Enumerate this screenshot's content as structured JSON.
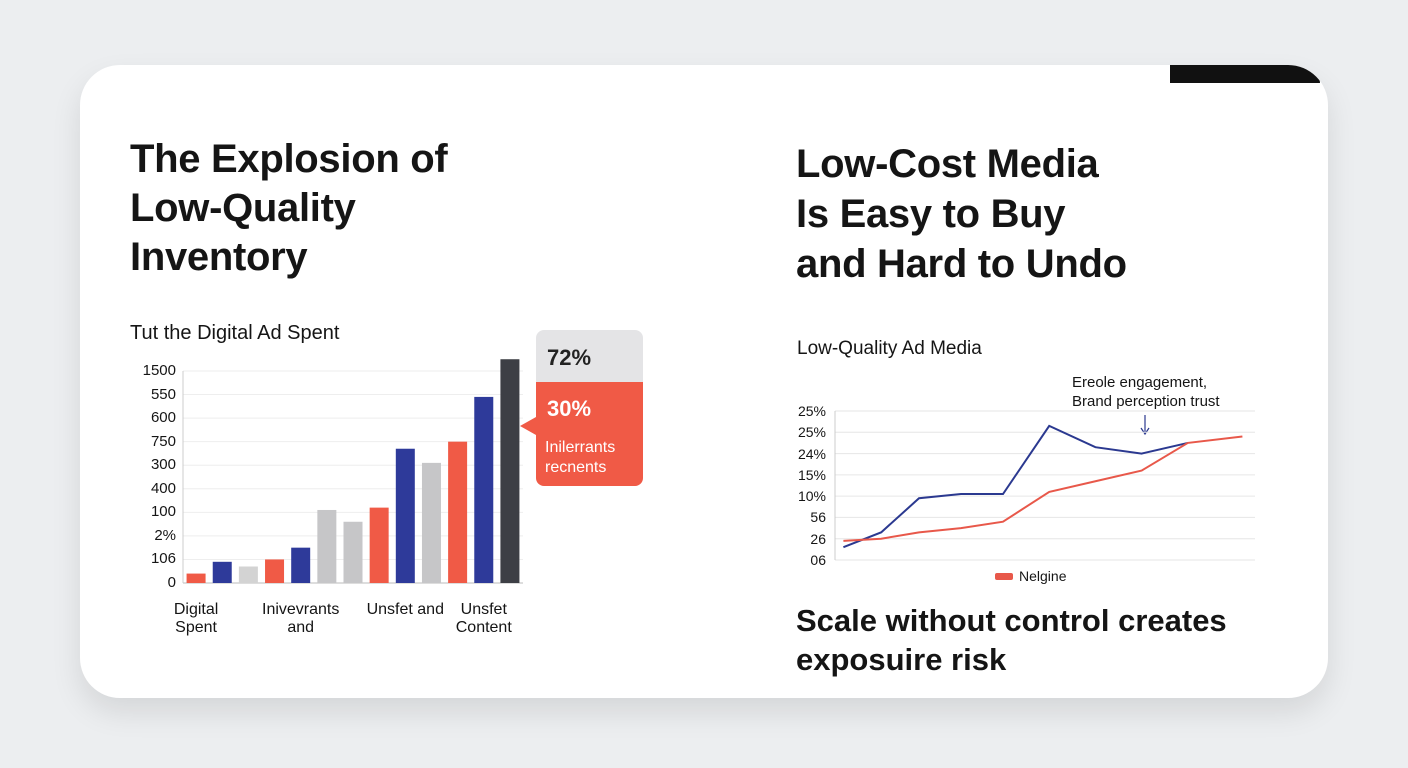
{
  "chart_data": [
    {
      "type": "bar",
      "heading": [
        "The Explosion of",
        "Low-Quality",
        "Inventory"
      ],
      "title": "Tut the Digital Ad Spent",
      "categories": [
        "Digital Spent",
        null,
        null,
        null,
        "Inivevrants and",
        null,
        null,
        null,
        "Unsfet and",
        null,
        null,
        "Unsfet Content",
        null
      ],
      "values": [
        0.4,
        0.9,
        0.7,
        1.0,
        1.5,
        3.1,
        2.6,
        3.2,
        5.7,
        5.1,
        6.0,
        7.9,
        9.5
      ],
      "colors": [
        "#f05a46",
        "#2e3a9a",
        "#d3d3d3",
        "#f05a46",
        "#2e3a9a",
        "#c6c6c8",
        "#c6c6c8",
        "#f05a46",
        "#2e3a9a",
        "#c6c6c8",
        "#f05a46",
        "#2e3a9a",
        "#3d3f45"
      ],
      "ylim": [
        0,
        10
      ],
      "yticks": [
        0,
        {
          "value": 1,
          "label": "106"
        },
        {
          "value": 2,
          "label": "2%"
        },
        {
          "value": 3,
          "label": "100"
        },
        {
          "value": 4,
          "label": "400"
        },
        {
          "value": 5,
          "label": "300"
        },
        {
          "value": 6,
          "label": "750"
        },
        {
          "value": 7,
          "label": "600"
        },
        {
          "value": 8,
          "label": "550"
        },
        {
          "value": 9,
          "label": "1500"
        }
      ],
      "grid": true,
      "callout": {
        "label": "72%",
        "value_label": "30%",
        "text": "Inilerrants recnents"
      }
    },
    {
      "type": "line",
      "heading": [
        "Low-Cost Media",
        "Is Easy to Buy",
        "and Hard to Undo"
      ],
      "title": "Low-Quality Ad Media",
      "annotation": [
        "Ereole engagement,",
        "Brand perception trust"
      ],
      "x": [
        0.2,
        1.1,
        2.0,
        3.0,
        4.0,
        5.1,
        6.2,
        7.3,
        8.4,
        9.7
      ],
      "xlim": [
        0,
        10
      ],
      "series": [
        {
          "color": "#2b3990",
          "values": [
            0.6,
            1.3,
            2.9,
            3.1,
            3.1,
            6.3,
            5.3,
            5.0,
            5.5,
            null
          ]
        },
        {
          "name": "Nelgine",
          "color": "#e8584a",
          "values": [
            0.9,
            1.0,
            1.3,
            1.5,
            1.8,
            3.2,
            3.7,
            4.2,
            5.5,
            5.8
          ]
        }
      ],
      "ylim": [
        0,
        7
      ],
      "yticks": [
        {
          "value": 0,
          "label": "06"
        },
        {
          "value": 1,
          "label": "26"
        },
        {
          "value": 2,
          "label": "56"
        },
        {
          "value": 3,
          "label": "10%"
        },
        {
          "value": 4,
          "label": "15%"
        },
        {
          "value": 5,
          "label": "24%"
        },
        {
          "value": 6,
          "label": "25%"
        },
        {
          "value": 7,
          "label": "25%"
        }
      ],
      "grid": true,
      "legend": "bottom",
      "footnote": [
        "Scale without control creates",
        "exposuire risk"
      ]
    }
  ]
}
